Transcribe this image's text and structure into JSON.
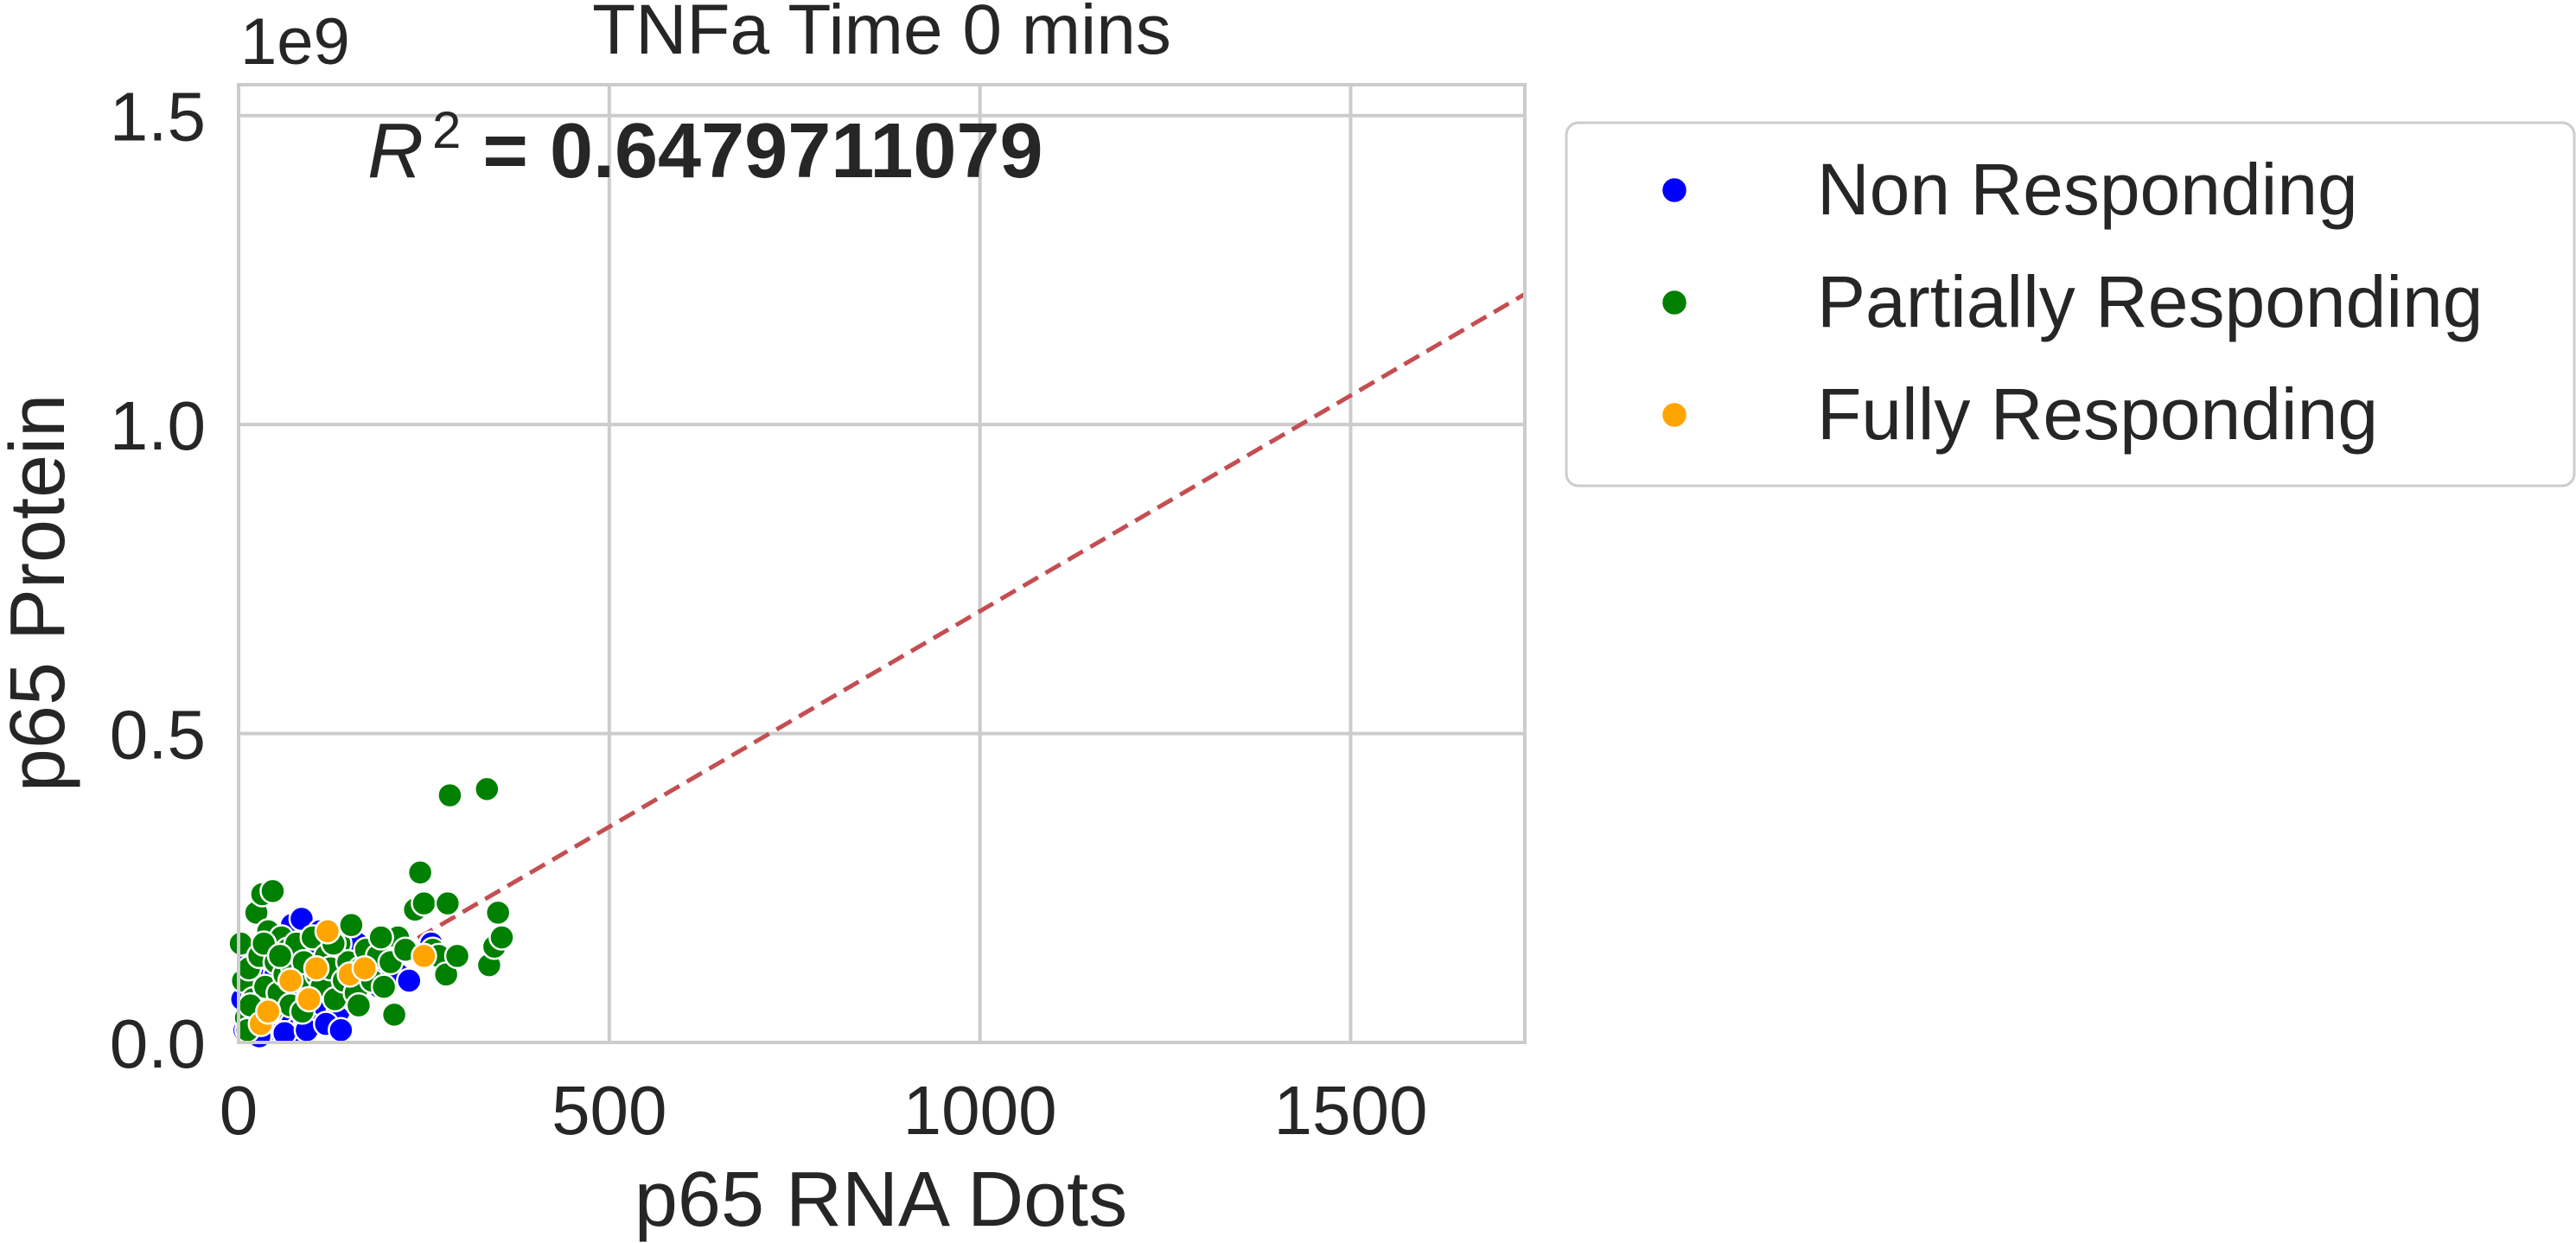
{
  "chart_data": {
    "type": "scatter",
    "title": "TNFa Time 0 mins",
    "xlabel": "p65 RNA Dots",
    "ylabel": "p65 Protein",
    "y_offset_label": "1e9",
    "annotation": {
      "prefix": "R",
      "superscript": "2",
      "text": " = 0.6479711079"
    },
    "xlim": [
      0,
      1735
    ],
    "ylim": [
      0,
      1.55
    ],
    "x_ticks": [
      0,
      500,
      1000,
      1500
    ],
    "x_tick_labels": [
      "0",
      "500",
      "1000",
      "1500"
    ],
    "y_ticks": [
      0,
      0.5,
      1.0,
      1.5
    ],
    "y_tick_labels": [
      "0.0",
      "0.5",
      "1.0",
      "1.5"
    ],
    "grid": true,
    "legend_position": "outside-right-top",
    "fit_line": {
      "color": "#c44e52",
      "style": "dashed",
      "slope": 0.000698,
      "intercept": 0.0
    },
    "series": [
      {
        "name": "Non Responding",
        "color": "#0000ff",
        "points": [
          [
            8,
            0.02
          ],
          [
            12,
            0.05
          ],
          [
            18,
            0.08
          ],
          [
            22,
            0.03
          ],
          [
            25,
            0.11
          ],
          [
            30,
            0.06
          ],
          [
            35,
            0.14
          ],
          [
            38,
            0.02
          ],
          [
            40,
            0.09
          ],
          [
            45,
            0.12
          ],
          [
            48,
            0.04
          ],
          [
            52,
            0.07
          ],
          [
            55,
            0.16
          ],
          [
            58,
            0.03
          ],
          [
            60,
            0.1
          ],
          [
            65,
            0.13
          ],
          [
            68,
            0.05
          ],
          [
            70,
            0.08
          ],
          [
            72,
            0.19
          ],
          [
            75,
            0.11
          ],
          [
            78,
            0.02
          ],
          [
            80,
            0.06
          ],
          [
            82,
            0.14
          ],
          [
            85,
            0.2
          ],
          [
            88,
            0.09
          ],
          [
            90,
            0.04
          ],
          [
            95,
            0.12
          ],
          [
            98,
            0.07
          ],
          [
            100,
            0.15
          ],
          [
            105,
            0.03
          ],
          [
            108,
            0.1
          ],
          [
            110,
            0.18
          ],
          [
            115,
            0.06
          ],
          [
            120,
            0.13
          ],
          [
            125,
            0.08
          ],
          [
            130,
            0.11
          ],
          [
            135,
            0.05
          ],
          [
            140,
            0.14
          ],
          [
            145,
            0.09
          ],
          [
            150,
            0.12
          ],
          [
            155,
            0.07
          ],
          [
            160,
            0.16
          ],
          [
            170,
            0.1
          ],
          [
            180,
            0.13
          ],
          [
            190,
            0.09
          ],
          [
            200,
            0.12
          ],
          [
            215,
            0.11
          ],
          [
            230,
            0.1
          ],
          [
            260,
            0.16
          ],
          [
            5,
            0.07
          ],
          [
            15,
            0.13
          ],
          [
            28,
            0.01
          ],
          [
            42,
            0.17
          ],
          [
            62,
            0.015
          ],
          [
            92,
            0.02
          ],
          [
            118,
            0.03
          ],
          [
            138,
            0.02
          ],
          [
            33,
            0.1
          ],
          [
            50,
            0.11
          ],
          [
            66,
            0.09
          ]
        ]
      },
      {
        "name": "Partially Responding",
        "color": "#008000",
        "points": [
          [
            3,
            0.16
          ],
          [
            6,
            0.1
          ],
          [
            10,
            0.04
          ],
          [
            14,
            0.12
          ],
          [
            20,
            0.07
          ],
          [
            24,
            0.21
          ],
          [
            28,
            0.14
          ],
          [
            32,
            0.24
          ],
          [
            36,
            0.09
          ],
          [
            40,
            0.18
          ],
          [
            44,
            0.05
          ],
          [
            46,
            0.245
          ],
          [
            50,
            0.13
          ],
          [
            54,
            0.08
          ],
          [
            58,
            0.17
          ],
          [
            62,
            0.11
          ],
          [
            66,
            0.15
          ],
          [
            70,
            0.06
          ],
          [
            74,
            0.12
          ],
          [
            78,
            0.16
          ],
          [
            84,
            0.1
          ],
          [
            88,
            0.13
          ],
          [
            94,
            0.07
          ],
          [
            100,
            0.17
          ],
          [
            106,
            0.11
          ],
          [
            112,
            0.09
          ],
          [
            118,
            0.14
          ],
          [
            124,
            0.12
          ],
          [
            130,
            0.07
          ],
          [
            136,
            0.16
          ],
          [
            142,
            0.1
          ],
          [
            148,
            0.13
          ],
          [
            152,
            0.19
          ],
          [
            158,
            0.08
          ],
          [
            165,
            0.12
          ],
          [
            172,
            0.15
          ],
          [
            180,
            0.1
          ],
          [
            188,
            0.14
          ],
          [
            196,
            0.09
          ],
          [
            205,
            0.13
          ],
          [
            210,
            0.045
          ],
          [
            215,
            0.17
          ],
          [
            225,
            0.15
          ],
          [
            238,
            0.215
          ],
          [
            245,
            0.275
          ],
          [
            250,
            0.225
          ],
          [
            262,
            0.15
          ],
          [
            270,
            0.14
          ],
          [
            280,
            0.11
          ],
          [
            282,
            0.225
          ],
          [
            285,
            0.4
          ],
          [
            295,
            0.14
          ],
          [
            335,
            0.41
          ],
          [
            338,
            0.125
          ],
          [
            345,
            0.155
          ],
          [
            350,
            0.21
          ],
          [
            355,
            0.17
          ],
          [
            16,
            0.06
          ],
          [
            34,
            0.16
          ],
          [
            56,
            0.14
          ],
          [
            86,
            0.05
          ],
          [
            128,
            0.16
          ],
          [
            162,
            0.06
          ],
          [
            192,
            0.17
          ],
          [
            12,
            0.02
          ]
        ]
      },
      {
        "name": "Fully Responding",
        "color": "#ffa500",
        "points": [
          [
            30,
            0.03
          ],
          [
            70,
            0.1
          ],
          [
            95,
            0.07
          ],
          [
            120,
            0.18
          ],
          [
            150,
            0.11
          ],
          [
            170,
            0.12
          ],
          [
            250,
            0.14
          ],
          [
            40,
            0.05
          ],
          [
            105,
            0.12
          ]
        ]
      }
    ]
  }
}
